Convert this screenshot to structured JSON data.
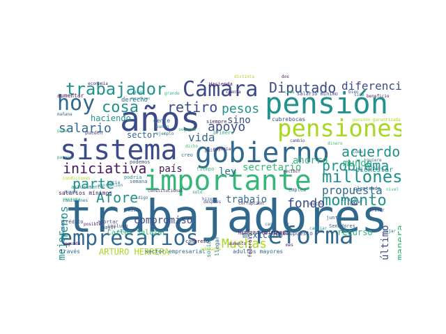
{
  "palette": {
    "purple": "#44185c",
    "indigo": "#3b4a8a",
    "blue": "#31688e",
    "teal": "#21918c",
    "green": "#35b779",
    "lime": "#a6d81f"
  },
  "words": [
    {
      "text": "trabajadores",
      "color": "#31688e",
      "vertical": false
    },
    {
      "text": "sistema",
      "color": "#3b4a8a",
      "vertical": false
    },
    {
      "text": "años",
      "color": "#3b4a8a",
      "vertical": false
    },
    {
      "text": "gobierno",
      "color": "#31688e",
      "vertical": false
    },
    {
      "text": "importante",
      "color": "#35b779",
      "vertical": false
    },
    {
      "text": "reforma",
      "color": "#31688e",
      "vertical": false
    },
    {
      "text": "pensión",
      "color": "#21918c",
      "vertical": false
    },
    {
      "text": "empresarios",
      "color": "#31688e",
      "vertical": false
    },
    {
      "text": "pensiones",
      "color": "#a6d81f",
      "vertical": false
    },
    {
      "text": "Cámara",
      "color": "#3b4a8a",
      "vertical": false
    },
    {
      "text": "hoy",
      "color": "#31688e",
      "vertical": false
    },
    {
      "text": "trabajador",
      "color": "#21918c",
      "vertical": false
    },
    {
      "text": "cosa",
      "color": "#21918c",
      "vertical": false
    },
    {
      "text": "millones",
      "color": "#21918c",
      "vertical": false
    },
    {
      "text": "Diputado",
      "color": "#3b4a8a",
      "vertical": false
    },
    {
      "text": "diferencia",
      "color": "#3b4a8a",
      "vertical": false
    },
    {
      "text": "momento",
      "color": "#21918c",
      "vertical": false
    },
    {
      "text": "retiro",
      "color": "#3b4a8a",
      "vertical": false
    },
    {
      "text": "iniciativa",
      "color": "#44185c",
      "vertical": false
    },
    {
      "text": "problema",
      "color": "#21918c",
      "vertical": false
    },
    {
      "text": "acuerdo",
      "color": "#21918c",
      "vertical": false
    },
    {
      "text": "salario",
      "color": "#31688e",
      "vertical": false
    },
    {
      "text": "apoyo",
      "color": "#3b4a8a",
      "vertical": false
    },
    {
      "text": "pesos",
      "color": "#21918c",
      "vertical": false
    },
    {
      "text": "parte",
      "color": "#21918c",
      "vertical": false
    },
    {
      "text": "Afore",
      "color": "#21918c",
      "vertical": false
    },
    {
      "text": "fondo",
      "color": "#3b4a8a",
      "vertical": false
    },
    {
      "text": "Muchas",
      "color": "#a6d81f",
      "vertical": false
    },
    {
      "text": "propuesta",
      "color": "#31688e",
      "vertical": false
    },
    {
      "text": "secretario",
      "color": "#35b779",
      "vertical": false
    },
    {
      "text": "sino",
      "color": "#3b4a8a",
      "vertical": false
    },
    {
      "text": "vida",
      "color": "#31688e",
      "vertical": false
    },
    {
      "text": "país",
      "color": "#44185c",
      "vertical": false
    },
    {
      "text": "ley",
      "color": "#31688e",
      "vertical": false
    },
    {
      "text": "trabajo",
      "color": "#31688e",
      "vertical": false
    },
    {
      "text": "compromiso",
      "color": "#3b4a8a",
      "vertical": false
    },
    {
      "text": "mundo",
      "color": "#35b779",
      "vertical": false
    },
    {
      "text": "ahorro",
      "color": "#35b779",
      "vertical": false
    },
    {
      "text": "haciendo",
      "color": "#21918c",
      "vertical": false
    },
    {
      "text": "sector",
      "color": "#31688e",
      "vertical": false
    },
    {
      "text": "mexicano",
      "color": "#31688e",
      "vertical": false
    },
    {
      "text": "ARTURO HERRERA",
      "color": "#a6d81f",
      "vertical": false
    },
    {
      "text": "recurso",
      "color": "#35b779",
      "vertical": false
    },
    {
      "text": "bienestar",
      "color": "#21918c",
      "vertical": false
    },
    {
      "text": "menos",
      "color": "#21918c",
      "vertical": true
    },
    {
      "text": "mejor",
      "color": "#21918c",
      "vertical": true
    },
    {
      "text": "manera",
      "color": "#35b779",
      "vertical": true
    },
    {
      "text": "último",
      "color": "#3b4a8a",
      "vertical": true
    },
    {
      "text": "Carlos Salazar",
      "color": "#35b779",
      "vertical": false
    },
    {
      "text": "sector empresarial",
      "color": "#31688e",
      "vertical": false
    },
    {
      "text": "adultos mayores",
      "color": "#31688e",
      "vertical": false
    },
    {
      "text": "presupuesto",
      "color": "#3b4a8a",
      "vertical": false
    },
    {
      "text": "HERRERA GUTIÉRREZ",
      "color": "#44185c",
      "vertical": false
    },
    {
      "text": "salarios mínimos",
      "color": "#44185c",
      "vertical": false
    },
    {
      "text": "salario mínimo",
      "color": "#3b4a8a",
      "vertical": false
    },
    {
      "text": "cubrebocas",
      "color": "#3b4a8a",
      "vertical": false
    },
    {
      "text": "Hacienda",
      "color": "#44185c",
      "vertical": false
    },
    {
      "text": "derecho",
      "color": "#31688e",
      "vertical": false
    },
    {
      "text": "aumentar",
      "color": "#44185c",
      "vertical": false
    },
    {
      "text": "siempre",
      "color": "#44185c",
      "vertical": false
    },
    {
      "text": "primero",
      "color": "#35b779",
      "vertical": false
    },
    {
      "text": "junto",
      "color": "#31688e",
      "vertical": false
    },
    {
      "text": "Senadores",
      "color": "#31688e",
      "vertical": false
    },
    {
      "text": "cambiar",
      "color": "#21918c",
      "vertical": false
    },
    {
      "text": "trata",
      "color": "#31688e",
      "vertical": false
    },
    {
      "text": "dar",
      "color": "#44185c",
      "vertical": false
    },
    {
      "text": "grande",
      "color": "#35b779",
      "vertical": false
    },
    {
      "text": "gente",
      "color": "#31688e",
      "vertical": false
    },
    {
      "text": "mecanismo",
      "color": "#21918c",
      "vertical": false
    },
    {
      "text": "economía",
      "color": "#44185c",
      "vertical": false
    },
    {
      "text": "pueden",
      "color": "#3b4a8a",
      "vertical": false
    },
    {
      "text": "podemos",
      "color": "#3b4a8a",
      "vertical": false
    },
    {
      "text": "tiempo",
      "color": "#35b779",
      "vertical": false
    },
    {
      "text": "semana",
      "color": "#31688e",
      "vertical": false
    },
    {
      "text": "mayor",
      "color": "#3b4a8a",
      "vertical": false
    },
    {
      "text": "aportar",
      "color": "#3b4a8a",
      "vertical": false
    },
    {
      "text": "crédito",
      "color": "#3b4a8a",
      "vertical": false
    },
    {
      "text": "incluso",
      "color": "#3b4a8a",
      "vertical": false
    },
    {
      "text": "través",
      "color": "#31688e",
      "vertical": false
    },
    {
      "text": "segunda",
      "color": "#44185c",
      "vertical": false
    },
    {
      "text": "aportación",
      "color": "#21918c",
      "vertical": false
    },
    {
      "text": "podría",
      "color": "#21918c",
      "vertical": false
    },
    {
      "text": "condiciones",
      "color": "#a6d81f",
      "vertical": false
    },
    {
      "text": "nunca",
      "color": "#31688e",
      "vertical": false
    },
    {
      "text": "mañana",
      "color": "#31688e",
      "vertical": false
    },
    {
      "text": "poner",
      "color": "#35b779",
      "vertical": false
    },
    {
      "text": "parece",
      "color": "#21918c",
      "vertical": false
    },
    {
      "text": "punto",
      "color": "#31688e",
      "vertical": false
    },
    {
      "text": "ejemplo",
      "color": "#31688e",
      "vertical": false
    },
    {
      "text": "segundo",
      "color": "#35b779",
      "vertical": false
    },
    {
      "text": "creo",
      "color": "#31688e",
      "vertical": false
    },
    {
      "text": "dicho",
      "color": "#35b779",
      "vertical": false
    },
    {
      "text": "social",
      "color": "#21918c",
      "vertical": true
    },
    {
      "text": "llegar",
      "color": "#31688e",
      "vertical": true
    },
    {
      "text": "federal",
      "color": "#44185c",
      "vertical": true
    },
    {
      "text": "casi",
      "color": "#31688e",
      "vertical": false
    },
    {
      "text": "ir",
      "color": "#3b4a8a",
      "vertical": false
    },
    {
      "text": "mucho",
      "color": "#3b4a8a",
      "vertical": false
    },
    {
      "text": "empleo",
      "color": "#31688e",
      "vertical": false
    },
    {
      "text": "hizo",
      "color": "#3b4a8a",
      "vertical": false
    },
    {
      "text": "corrupción",
      "color": "#44185c",
      "vertical": false
    },
    {
      "text": "recibir",
      "color": "#44185c",
      "vertical": false
    },
    {
      "text": "planteado",
      "color": "#31688e",
      "vertical": false
    },
    {
      "text": "congreso",
      "color": "#44185c",
      "vertical": false
    },
    {
      "text": "aumento",
      "color": "#44185c",
      "vertical": false
    },
    {
      "text": "adelante",
      "color": "#a6d81f",
      "vertical": false
    },
    {
      "text": "pandemia",
      "color": "#31688e",
      "vertical": true
    },
    {
      "text": "comisiones",
      "color": "#31688e",
      "vertical": false
    },
    {
      "text": "persona",
      "color": "#35b779",
      "vertical": false
    },
    {
      "text": "actualmente",
      "color": "#21918c",
      "vertical": false
    },
    {
      "text": "constitucional",
      "color": "#44185c",
      "vertical": false
    },
    {
      "text": "beneficio",
      "color": "#44185c",
      "vertical": false
    },
    {
      "text": "quiere",
      "color": "#31688e",
      "vertical": false
    },
    {
      "text": "cambio",
      "color": "#3b4a8a",
      "vertical": false
    },
    {
      "text": "hacia",
      "color": "#31688e",
      "vertical": false
    },
    {
      "text": "bien",
      "color": "#3b4a8a",
      "vertical": false
    },
    {
      "text": "sido",
      "color": "#31688e",
      "vertical": false
    },
    {
      "text": "mayoría",
      "color": "#44185c",
      "vertical": false
    },
    {
      "text": "solo",
      "color": "#21918c",
      "vertical": false
    },
    {
      "text": "idea",
      "color": "#31688e",
      "vertical": false
    },
    {
      "text": "tratar",
      "color": "#3b4a8a",
      "vertical": false
    },
    {
      "text": "bajar",
      "color": "#31688e",
      "vertical": false
    },
    {
      "text": "cuenta",
      "color": "#44185c",
      "vertical": false
    },
    {
      "text": "pensión garantizada",
      "color": "#a6d81f",
      "vertical": false
    },
    {
      "text": "salud",
      "color": "#21918c",
      "vertical": false
    },
    {
      "text": "posible",
      "color": "#44185c",
      "vertical": false
    },
    {
      "text": "nivel",
      "color": "#35b779",
      "vertical": false
    },
    {
      "text": "quiero",
      "color": "#21918c",
      "vertical": false
    },
    {
      "text": "dinero",
      "color": "#35b779",
      "vertical": false
    },
    {
      "text": "digo",
      "color": "#31688e",
      "vertical": false
    },
    {
      "text": "mismo",
      "color": "#3b4a8a",
      "vertical": false
    },
    {
      "text": "distinta",
      "color": "#a6d81f",
      "vertical": false
    },
    {
      "text": "cada",
      "color": "#35b779",
      "vertical": false
    },
    {
      "text": "mes",
      "color": "#44185c",
      "vertical": false
    },
    {
      "text": "país",
      "color": "#3b4a8a",
      "vertical": false
    },
    {
      "text": "dos",
      "color": "#44185c",
      "vertical": false
    },
    {
      "text": "después",
      "color": "#3b4a8a",
      "vertical": false
    },
    {
      "text": "ayer",
      "color": "#31688e",
      "vertical": false
    },
    {
      "text": "gran",
      "color": "#21918c",
      "vertical": false
    }
  ]
}
